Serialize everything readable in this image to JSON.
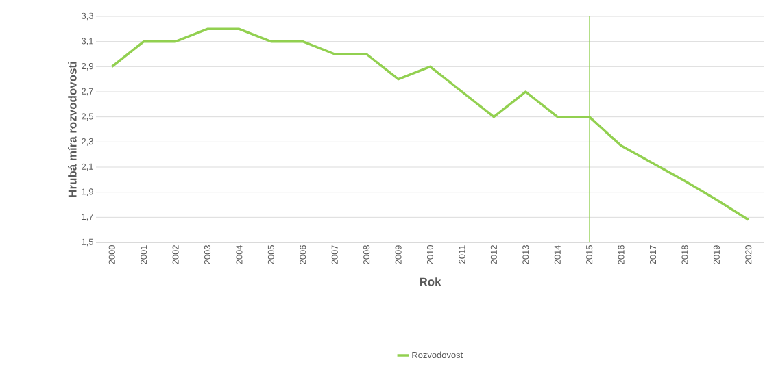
{
  "chart_data": {
    "type": "line",
    "xlabel": "Rok",
    "ylabel": "Hrubá míra rozvodovosti",
    "x": [
      2000,
      2001,
      2002,
      2003,
      2004,
      2005,
      2006,
      2007,
      2008,
      2009,
      2010,
      2011,
      2012,
      2013,
      2014,
      2015,
      2016,
      2017,
      2018,
      2019,
      2020
    ],
    "series": [
      {
        "name": "Rozvodovost",
        "color": "#92d050",
        "values": [
          2.9,
          3.1,
          3.1,
          3.2,
          3.2,
          3.1,
          3.1,
          3.0,
          3.0,
          2.8,
          2.9,
          2.7,
          2.5,
          2.7,
          2.5,
          2.5,
          2.27,
          2.13,
          1.99,
          1.84,
          1.68
        ]
      }
    ],
    "xlim": [
      1999.5,
      2020.5
    ],
    "xticks": [
      2000,
      2001,
      2002,
      2003,
      2004,
      2005,
      2006,
      2007,
      2008,
      2009,
      2010,
      2011,
      2012,
      2013,
      2014,
      2015,
      2016,
      2017,
      2018,
      2019,
      2020
    ],
    "ylim": [
      1.5,
      3.3
    ],
    "yticks": [
      {
        "value": 1.5,
        "label": "1,5"
      },
      {
        "value": 1.7,
        "label": "1,7"
      },
      {
        "value": 1.9,
        "label": "1,9"
      },
      {
        "value": 2.1,
        "label": "2,1"
      },
      {
        "value": 2.3,
        "label": "2,3"
      },
      {
        "value": 2.5,
        "label": "2,5"
      },
      {
        "value": 2.7,
        "label": "2,7"
      },
      {
        "value": 2.9,
        "label": "2,9"
      },
      {
        "value": 3.1,
        "label": "3,1"
      },
      {
        "value": 3.3,
        "label": "3,3"
      }
    ],
    "ref_lines": [
      {
        "axis": "x",
        "value": 2015,
        "color": "#92d050"
      }
    ],
    "grid": "y",
    "legend": "bottom",
    "marker": "none",
    "line_style": "solid"
  }
}
